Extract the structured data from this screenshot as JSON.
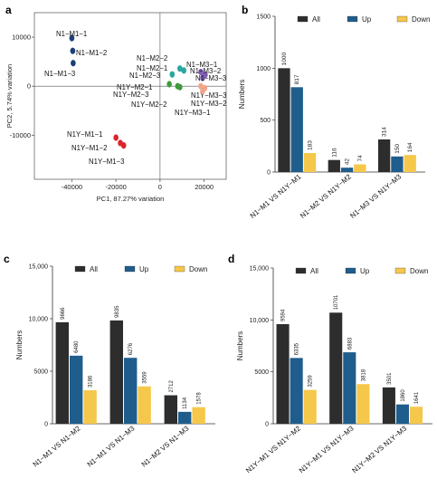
{
  "panels": {
    "a": "a",
    "b": "b",
    "c": "c",
    "d": "d"
  },
  "colors": {
    "all": "#2d2d2d",
    "up": "#1f5d8c",
    "down": "#f5c74a",
    "m1": "#1c3f77",
    "m2": "#2aa7a0",
    "m3": "#7f5ab5",
    "y1": "#d9262b",
    "y2": "#3e9b3a",
    "y3": "#f2a58a"
  },
  "chart_data": [
    {
      "panel": "a",
      "type": "scatter",
      "xlabel": "PC1, 87.27% variation",
      "ylabel": "PC2, 5.74% variation",
      "xlim": [
        -57000,
        30000
      ],
      "ylim": [
        -19000,
        15000
      ],
      "xticks": [
        -40000,
        -20000,
        0,
        20000
      ],
      "xtick_labels": [
        "-40000",
        "-20000",
        "0",
        "20000"
      ],
      "yticks": [
        -10000,
        0,
        10000
      ],
      "ytick_labels": [
        "-10000",
        "0",
        "10000"
      ],
      "points": [
        {
          "label": "N1−M1−1",
          "x": -40000,
          "y": 9800,
          "group": "m1"
        },
        {
          "label": "N1−M1−2",
          "x": -39600,
          "y": 7200,
          "group": "m1"
        },
        {
          "label": "N1−M1−3",
          "x": -39400,
          "y": 4700,
          "group": "m1"
        },
        {
          "label": "N1−M2−2",
          "x": 9000,
          "y": 3600,
          "group": "m2"
        },
        {
          "label": "N1−M2−1",
          "x": 10800,
          "y": 3200,
          "group": "m2"
        },
        {
          "label": "N1−M2−3",
          "x": 5500,
          "y": 2400,
          "group": "m2"
        },
        {
          "label": "N1−M3−1",
          "x": 18500,
          "y": 2900,
          "group": "m3"
        },
        {
          "label": "N1−M3−2",
          "x": 20500,
          "y": 2300,
          "group": "m3"
        },
        {
          "label": "N1−M3−3",
          "x": 19300,
          "y": 1700,
          "group": "m3"
        },
        {
          "label": "N1Y−M2−1",
          "x": 4200,
          "y": 400,
          "group": "y2"
        },
        {
          "label": "N1Y−M2−3",
          "x": 8000,
          "y": 0,
          "group": "y2"
        },
        {
          "label": "N1Y−M2−2",
          "x": 9000,
          "y": -200,
          "group": "y2"
        },
        {
          "label": "N1Y−M3−3",
          "x": 18500,
          "y": 0,
          "group": "y3"
        },
        {
          "label": "N1Y−M3−2",
          "x": 20300,
          "y": -400,
          "group": "y3"
        },
        {
          "label": "N1Y−M3−1",
          "x": 19300,
          "y": -1000,
          "group": "y3"
        },
        {
          "label": "N1Y−M1−1",
          "x": -20000,
          "y": -10500,
          "group": "y1"
        },
        {
          "label": "N1Y−M1−2",
          "x": -18000,
          "y": -11600,
          "group": "y1"
        },
        {
          "label": "N1Y−M1−3",
          "x": -16500,
          "y": -12100,
          "group": "y1"
        }
      ]
    },
    {
      "panel": "b",
      "type": "bar",
      "ylabel": "Numbers",
      "ylim": [
        0,
        1500
      ],
      "yticks": [
        0,
        500,
        1000,
        1500
      ],
      "ytick_labels": [
        "0",
        "500",
        "1000",
        "1500"
      ],
      "legend": [
        "All",
        "Up",
        "Down"
      ],
      "categories": [
        "N1−M1 VS N1Y−M1",
        "N1−M2 VS N1Y−M2",
        "N1−M3 VS N1Y−M3"
      ],
      "series": [
        {
          "name": "All",
          "values": [
            1000,
            116,
            314
          ]
        },
        {
          "name": "Up",
          "values": [
            817,
            42,
            150
          ]
        },
        {
          "name": "Down",
          "values": [
            183,
            74,
            164
          ]
        }
      ]
    },
    {
      "panel": "c",
      "type": "bar",
      "ylabel": "Numbers",
      "ylim": [
        0,
        15000
      ],
      "yticks": [
        0,
        5000,
        10000,
        15000
      ],
      "ytick_labels": [
        "0",
        "5000",
        "10,000",
        "15,000"
      ],
      "legend": [
        "All",
        "Up",
        "Down"
      ],
      "categories": [
        "N1−M1 VS N1−M2",
        "N1−M1 VS N1−M3",
        "N1−M2 VS N1−M3"
      ],
      "series": [
        {
          "name": "All",
          "values": [
            9666,
            9835,
            2712
          ]
        },
        {
          "name": "Up",
          "values": [
            6480,
            6276,
            1134
          ]
        },
        {
          "name": "Down",
          "values": [
            3186,
            3559,
            1578
          ]
        }
      ]
    },
    {
      "panel": "d",
      "type": "bar",
      "ylabel": "Numbers",
      "ylim": [
        0,
        15000
      ],
      "yticks": [
        0,
        5000,
        10000,
        15000
      ],
      "ytick_labels": [
        "0",
        "5000",
        "10,000",
        "15,000"
      ],
      "legend": [
        "All",
        "Up",
        "Down"
      ],
      "categories": [
        "N1Y−M1 VS N1Y−M2",
        "N1Y−M1 VS N1Y−M3",
        "N1Y−M2 VS N1Y−M3"
      ],
      "series": [
        {
          "name": "All",
          "values": [
            9594,
            10701,
            3501
          ]
        },
        {
          "name": "Up",
          "values": [
            6335,
            6883,
            1860
          ]
        },
        {
          "name": "Down",
          "values": [
            3259,
            3818,
            1641
          ]
        }
      ]
    }
  ]
}
